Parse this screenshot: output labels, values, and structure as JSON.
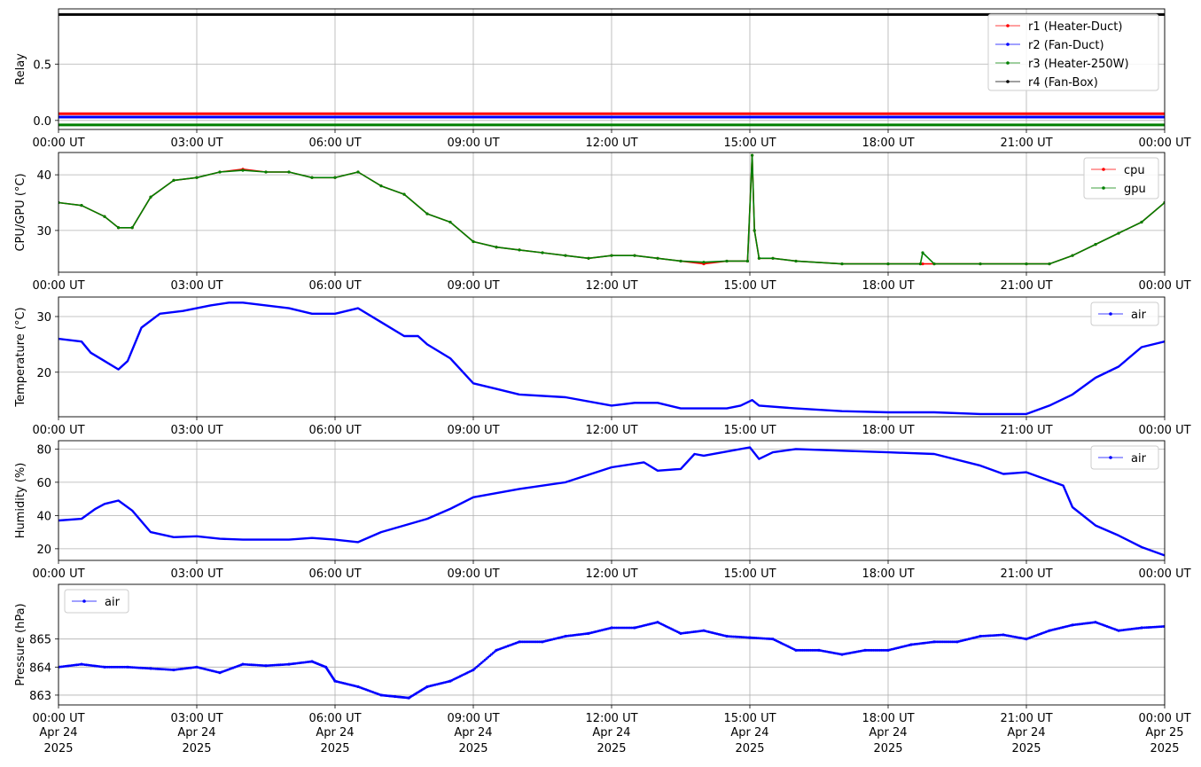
{
  "colors": {
    "r1": "#ff0000",
    "r2": "#0000ff",
    "r3": "#008000",
    "r4": "#000000",
    "cpu": "#ff0000",
    "gpu": "#008000",
    "air": "#0000ff",
    "grid": "#b0b0b0"
  },
  "x_axis": {
    "ticks": [
      "00:00 UT",
      "03:00 UT",
      "06:00 UT",
      "09:00 UT",
      "12:00 UT",
      "15:00 UT",
      "18:00 UT",
      "21:00 UT",
      "00:00 UT"
    ],
    "tick_hours": [
      0,
      3,
      6,
      9,
      12,
      15,
      18,
      21,
      24
    ],
    "date_labels": [
      "Apr 24",
      "Apr 24",
      "Apr 24",
      "Apr 24",
      "Apr 24",
      "Apr 24",
      "Apr 24",
      "Apr 24",
      "Apr 25"
    ],
    "year_labels": [
      "2025",
      "2025",
      "2025",
      "2025",
      "2025",
      "2025",
      "2025",
      "2025",
      "2025"
    ],
    "range_hours": [
      0,
      24
    ]
  },
  "chart_data": [
    {
      "type": "line",
      "ylabel": "Relay",
      "ylim": [
        -0.08,
        0.99
      ],
      "yticks": [
        0.0,
        0.5
      ],
      "ytick_labels": [
        "0.0",
        "0.5"
      ],
      "grid": true,
      "legend_position": "top-right",
      "x": [
        0,
        24
      ],
      "series": [
        {
          "name": "r1 (Heater-Duct)",
          "color_key": "r1",
          "values": [
            0.06,
            0.06
          ]
        },
        {
          "name": "r2 (Fan-Duct)",
          "color_key": "r2",
          "values": [
            0.03,
            0.03
          ]
        },
        {
          "name": "r3 (Heater-250W)",
          "color_key": "r3",
          "values": [
            -0.04,
            -0.04
          ]
        },
        {
          "name": "r4 (Fan-Box)",
          "color_key": "r4",
          "values": [
            0.94,
            0.94
          ]
        }
      ]
    },
    {
      "type": "line",
      "ylabel": "CPU/GPU (°C)",
      "ylim": [
        22.5,
        44
      ],
      "yticks": [
        30,
        40
      ],
      "ytick_labels": [
        "30",
        "40"
      ],
      "grid": true,
      "legend_position": "top-right",
      "x": [
        0,
        0.5,
        1.0,
        1.3,
        1.6,
        2.0,
        2.5,
        3.0,
        3.5,
        4.0,
        4.5,
        5.0,
        5.5,
        6.0,
        6.5,
        7.0,
        7.5,
        8.0,
        8.5,
        9.0,
        9.5,
        10.0,
        10.5,
        11.0,
        11.5,
        12.0,
        12.5,
        13.0,
        13.5,
        14.0,
        14.5,
        14.95,
        15.05,
        15.1,
        15.2,
        15.5,
        16.0,
        17.0,
        18.0,
        18.7,
        18.75,
        19.0,
        20.0,
        21.0,
        21.5,
        22.0,
        22.5,
        23.0,
        23.5,
        24.0
      ],
      "series": [
        {
          "name": "cpu",
          "color_key": "cpu",
          "values": [
            35,
            34.5,
            32.5,
            30.5,
            30.5,
            36,
            39,
            39.5,
            40.5,
            41,
            40.5,
            40.5,
            39.5,
            39.5,
            40.5,
            38,
            36.5,
            33,
            31.5,
            28,
            27,
            26.5,
            26,
            25.5,
            25,
            25.5,
            25.5,
            25,
            24.5,
            24,
            24.5,
            24.5,
            43.5,
            30,
            25,
            25,
            24.5,
            24,
            24,
            24,
            24,
            24,
            24,
            24,
            24,
            25.5,
            27.5,
            29.5,
            31.5,
            35
          ]
        },
        {
          "name": "gpu",
          "color_key": "gpu",
          "values": [
            35,
            34.5,
            32.5,
            30.5,
            30.5,
            36,
            39,
            39.5,
            40.5,
            40.8,
            40.5,
            40.5,
            39.5,
            39.5,
            40.5,
            38,
            36.5,
            33,
            31.5,
            28,
            27,
            26.5,
            26,
            25.5,
            25,
            25.5,
            25.5,
            25,
            24.5,
            24.3,
            24.5,
            24.5,
            43.5,
            30,
            25,
            25,
            24.5,
            24,
            24,
            24,
            26,
            24,
            24,
            24,
            24,
            25.5,
            27.5,
            29.5,
            31.5,
            35
          ]
        }
      ]
    },
    {
      "type": "line",
      "ylabel": "Temperature (°C)",
      "ylim": [
        12,
        33.5
      ],
      "yticks": [
        20,
        30
      ],
      "ytick_labels": [
        "20",
        "30"
      ],
      "grid": true,
      "legend_position": "top-right",
      "x": [
        0,
        0.5,
        0.7,
        1.0,
        1.3,
        1.5,
        1.8,
        2.2,
        2.7,
        3.0,
        3.3,
        3.7,
        4.0,
        4.5,
        5.0,
        5.5,
        6.0,
        6.5,
        7.0,
        7.5,
        7.8,
        8.0,
        8.5,
        9.0,
        9.5,
        10.0,
        11.0,
        12.0,
        12.5,
        13.0,
        13.5,
        14.0,
        14.5,
        14.8,
        15.05,
        15.2,
        16.0,
        17.0,
        18.0,
        19.0,
        20.0,
        21.0,
        21.5,
        22.0,
        22.5,
        23.0,
        23.5,
        24.0
      ],
      "series": [
        {
          "name": "air",
          "color_key": "air",
          "values": [
            26,
            25.5,
            23.5,
            22,
            20.5,
            22,
            28,
            30.5,
            31,
            31.5,
            32,
            32.5,
            32.5,
            32,
            31.5,
            30.5,
            30.5,
            31.5,
            29,
            26.5,
            26.5,
            25,
            22.5,
            18,
            17,
            16,
            15.5,
            14,
            14.5,
            14.5,
            13.5,
            13.5,
            13.5,
            14,
            15,
            14,
            13.5,
            13,
            12.8,
            12.8,
            12.5,
            12.5,
            14,
            16,
            19,
            21,
            24.5,
            25.5
          ]
        }
      ]
    },
    {
      "type": "line",
      "ylabel": "Humidity (%)",
      "ylim": [
        13,
        85
      ],
      "yticks": [
        20,
        40,
        60,
        80
      ],
      "ytick_labels": [
        "20",
        "40",
        "60",
        "80"
      ],
      "grid": true,
      "legend_position": "top-right",
      "x": [
        0,
        0.5,
        0.8,
        1.0,
        1.3,
        1.6,
        2.0,
        2.5,
        3.0,
        3.5,
        4.0,
        5.0,
        5.5,
        6.0,
        6.5,
        7.0,
        8.0,
        8.5,
        9.0,
        10.0,
        11.0,
        12.0,
        12.7,
        13.0,
        13.5,
        13.8,
        14.0,
        15.0,
        15.2,
        15.5,
        16.0,
        17.0,
        18.0,
        19.0,
        20.0,
        20.5,
        21.0,
        21.3,
        21.8,
        22.0,
        22.5,
        23.0,
        23.5,
        24.0
      ],
      "series": [
        {
          "name": "air",
          "color_key": "air",
          "values": [
            37,
            38,
            44,
            47,
            49,
            43,
            30,
            27,
            27.5,
            26,
            25.5,
            25.5,
            26.5,
            25.5,
            24,
            30,
            38,
            44,
            51,
            56,
            60,
            69,
            72,
            67,
            68,
            77,
            76,
            81,
            74,
            78,
            80,
            79,
            78,
            77,
            70,
            65,
            66,
            63,
            58,
            45,
            34,
            28,
            21,
            16
          ]
        }
      ]
    },
    {
      "type": "scatter",
      "ylabel": "Pressure (hPa)",
      "ylim": [
        862.65,
        866.95
      ],
      "yticks": [
        863,
        864,
        865
      ],
      "ytick_labels": [
        "863",
        "864",
        "865"
      ],
      "grid": true,
      "legend_position": "top-left",
      "x": [
        0,
        0.5,
        1.0,
        1.5,
        2.0,
        2.5,
        3.0,
        3.5,
        4.0,
        4.5,
        5.0,
        5.5,
        5.8,
        6.0,
        6.5,
        7.0,
        7.3,
        7.6,
        8.0,
        8.5,
        9.0,
        9.5,
        10.0,
        10.5,
        11.0,
        11.5,
        12.0,
        12.5,
        13.0,
        13.5,
        14.0,
        14.5,
        15.0,
        15.5,
        16.0,
        16.5,
        17.0,
        17.5,
        18.0,
        18.5,
        19.0,
        19.5,
        20.0,
        20.5,
        21.0,
        21.5,
        22.0,
        22.5,
        23.0,
        23.5,
        24.0
      ],
      "series": [
        {
          "name": "air",
          "color_key": "air",
          "values": [
            864.0,
            864.1,
            864.0,
            864.0,
            863.95,
            863.9,
            864.0,
            863.8,
            864.1,
            864.05,
            864.1,
            864.2,
            864.0,
            863.5,
            863.3,
            863.0,
            862.95,
            862.9,
            863.3,
            863.5,
            863.9,
            864.6,
            864.9,
            864.9,
            865.1,
            865.2,
            865.4,
            865.4,
            865.6,
            865.2,
            865.3,
            865.1,
            865.05,
            865.0,
            864.6,
            864.6,
            864.45,
            864.6,
            864.6,
            864.8,
            864.9,
            864.9,
            865.1,
            865.15,
            865.0,
            865.3,
            865.5,
            865.6,
            865.3,
            865.4,
            865.45
          ]
        }
      ]
    }
  ]
}
